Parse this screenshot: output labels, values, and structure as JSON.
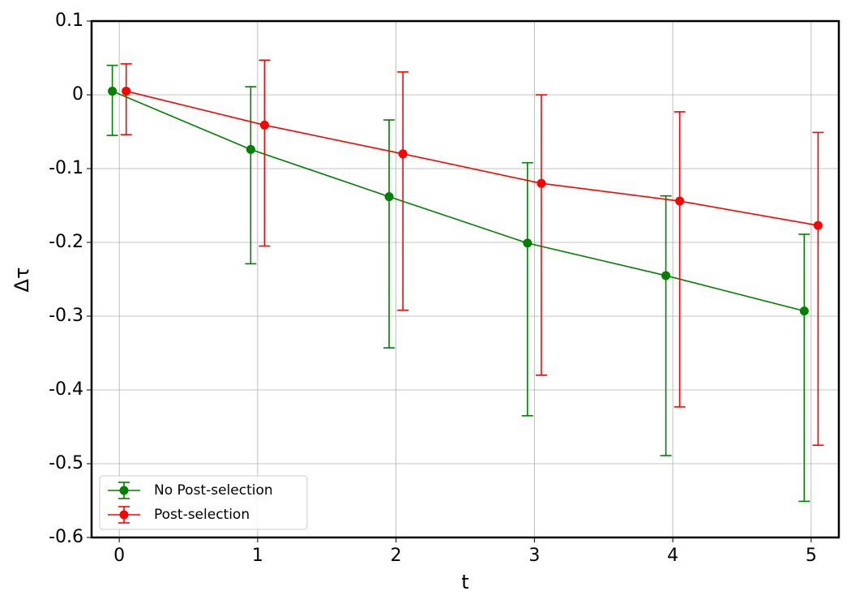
{
  "chart_data": {
    "type": "errorbar",
    "x_label": "t",
    "y_label": "Δτ",
    "xlim": [
      -0.2,
      5.2
    ],
    "ylim": [
      -0.6,
      0.1
    ],
    "xticks": [
      0,
      1,
      2,
      3,
      4,
      5
    ],
    "yticks": [
      0.1,
      0,
      -0.1,
      -0.2,
      -0.3,
      -0.4,
      -0.5,
      -0.6
    ],
    "grid": true,
    "legend": "lower left",
    "series": [
      {
        "name": "No Post-selection",
        "color": "#008000",
        "x": [
          -0.05,
          0.95,
          1.95,
          2.95,
          3.95,
          4.95
        ],
        "values": [
          0.005,
          -0.074,
          -0.138,
          -0.201,
          -0.245,
          -0.293
        ],
        "yerr_low": [
          0.06,
          0.155,
          0.205,
          0.234,
          0.244,
          0.258
        ],
        "yerr_high": [
          0.035,
          0.085,
          0.104,
          0.109,
          0.108,
          0.104
        ]
      },
      {
        "name": "Post-selection",
        "color": "#ff0000",
        "x": [
          0.05,
          1.05,
          2.05,
          3.05,
          4.05,
          5.05
        ],
        "values": [
          0.005,
          -0.041,
          -0.08,
          -0.12,
          -0.144,
          -0.177
        ],
        "yerr_low": [
          0.059,
          0.164,
          0.212,
          0.26,
          0.279,
          0.298
        ],
        "yerr_high": [
          0.037,
          0.088,
          0.111,
          0.12,
          0.121,
          0.126
        ]
      }
    ]
  }
}
